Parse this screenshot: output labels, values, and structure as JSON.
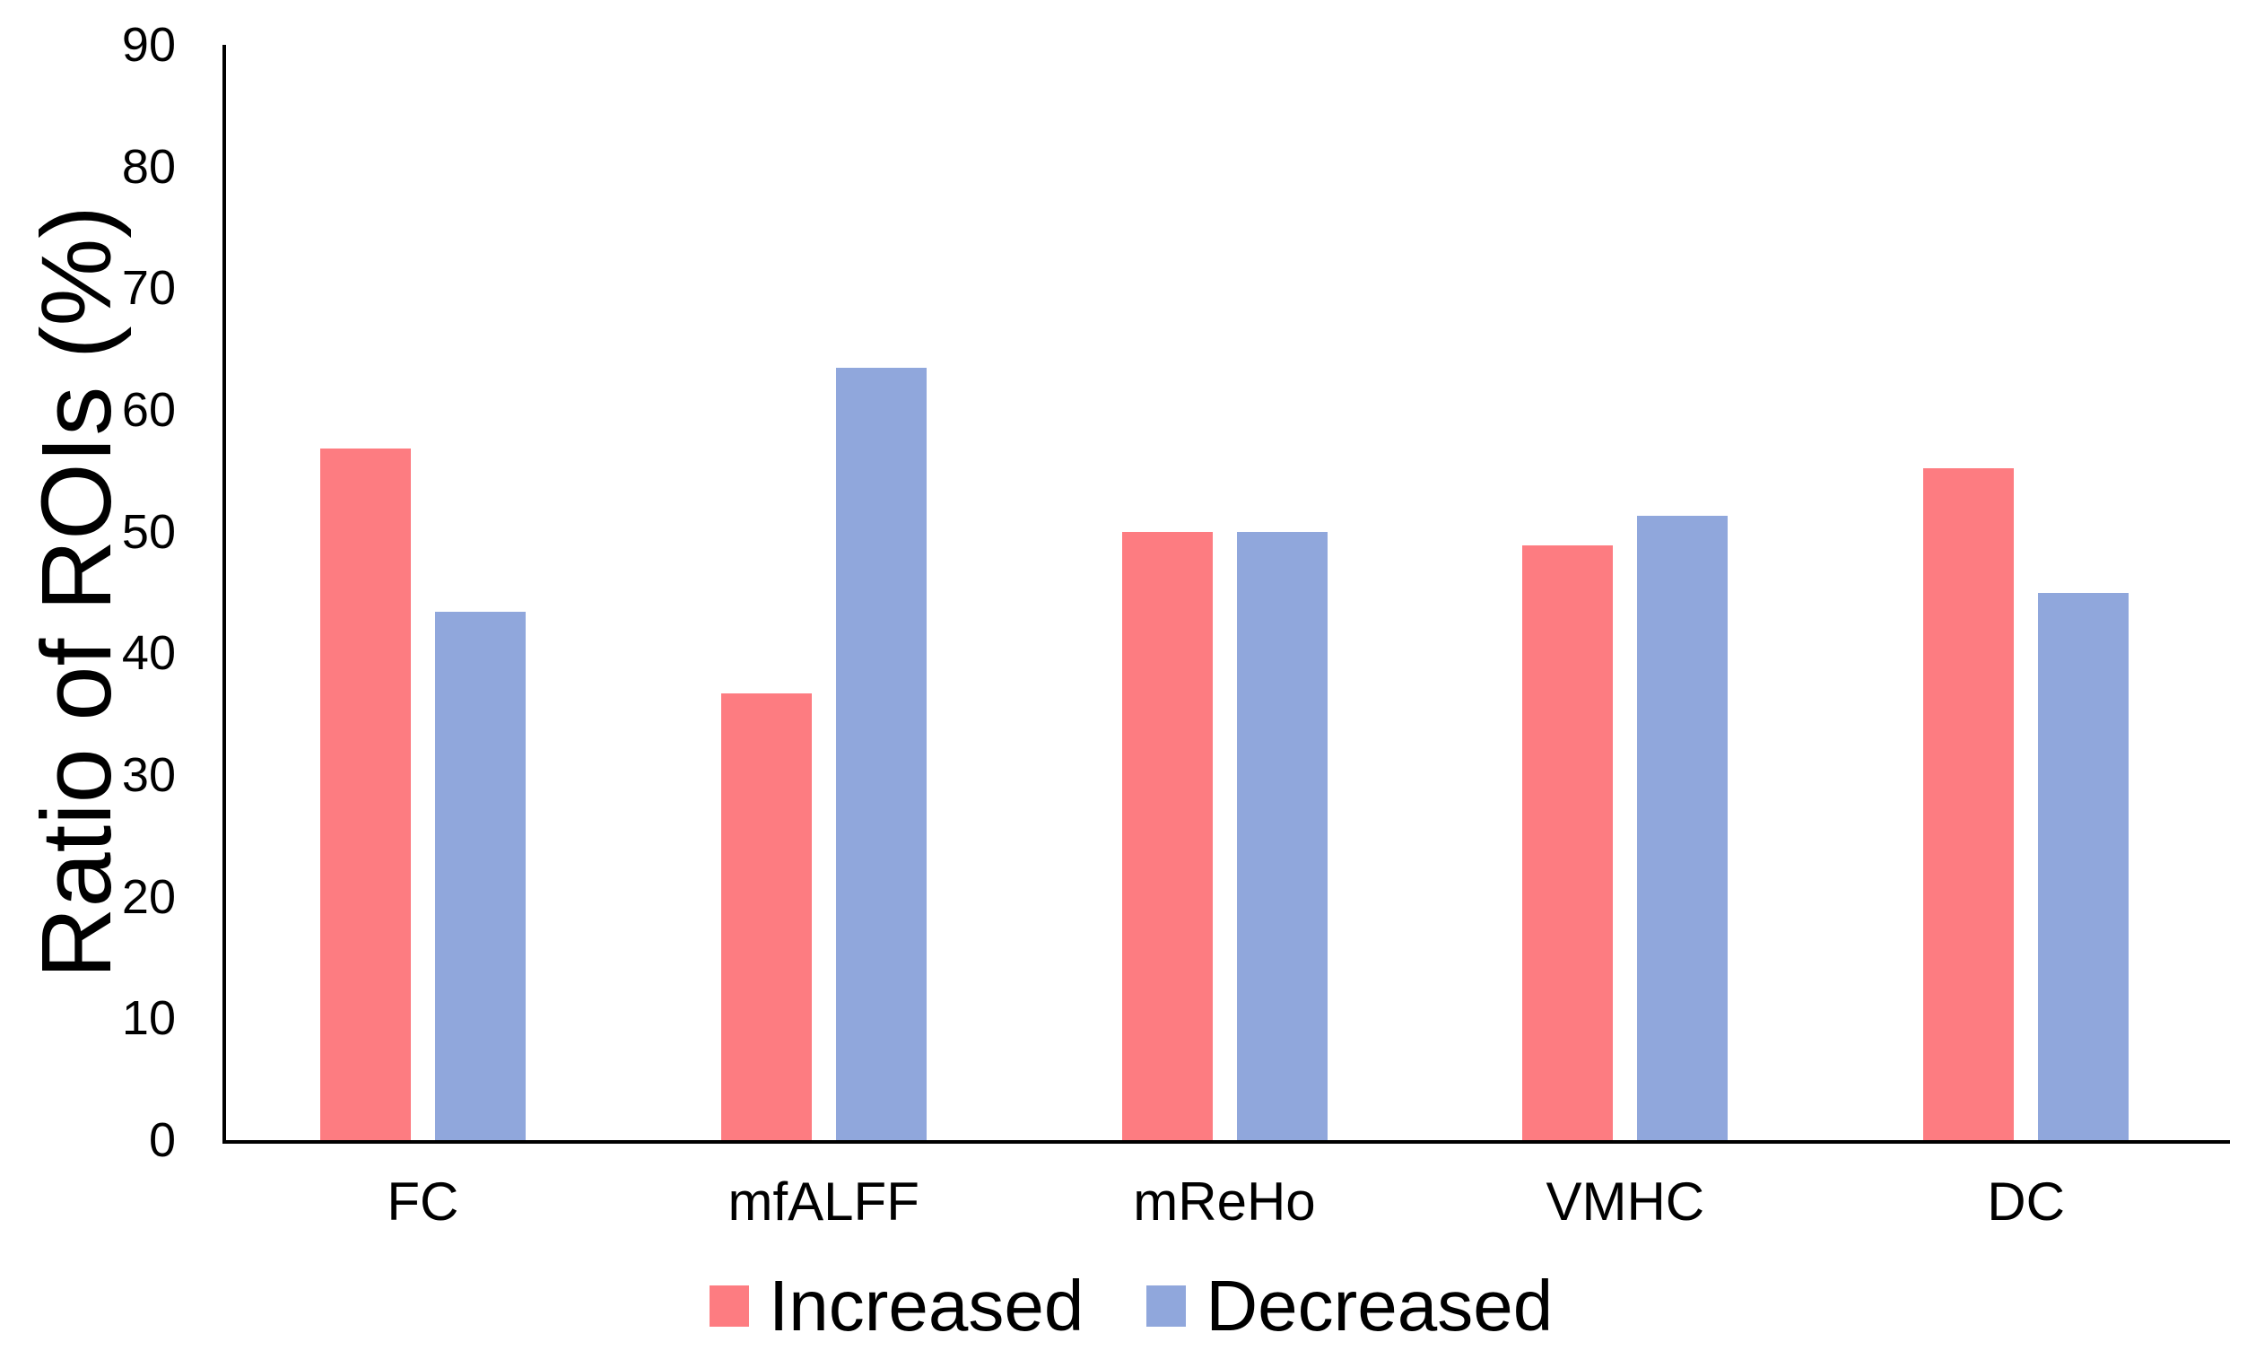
{
  "chart_data": {
    "type": "bar",
    "title": "",
    "xlabel": "",
    "ylabel": "Ratio of ROIs (%)",
    "ylim": [
      0,
      90
    ],
    "yticks": [
      0,
      10,
      20,
      30,
      40,
      50,
      60,
      70,
      80,
      90
    ],
    "grid": false,
    "legend_position": "bottom",
    "background_color": "#FFFFFF",
    "axis_color": "#000000",
    "categories": [
      "FC",
      "mfALFF",
      "mReHo",
      "VMHC",
      "DC"
    ],
    "series": [
      {
        "name": "Increased",
        "color": "#FD7C81",
        "values": [
          56.8,
          36.7,
          50.0,
          48.9,
          55.2
        ]
      },
      {
        "name": "Decreased",
        "color": "#90A7DC",
        "values": [
          43.4,
          63.5,
          50.0,
          51.3,
          45.0
        ]
      }
    ]
  }
}
